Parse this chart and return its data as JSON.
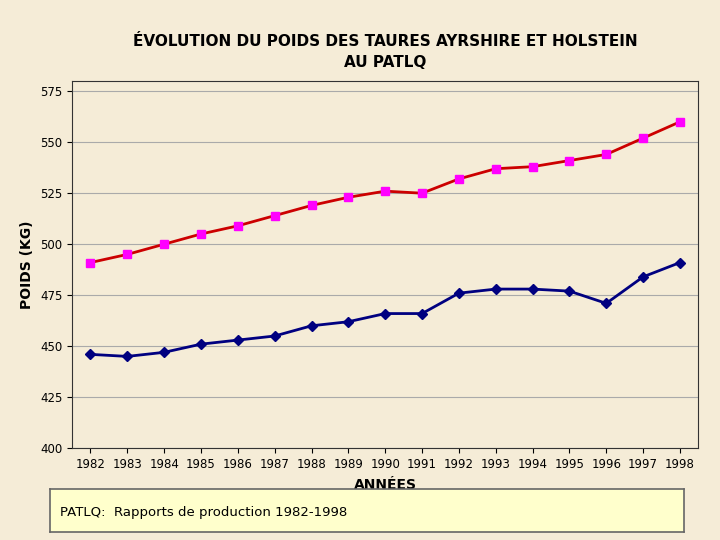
{
  "title": "ÉVOLUTION DU POIDS DES TAURES AYRSHIRE ET HOLSTEIN\nAU PATLQ",
  "xlabel": "ANNÉES",
  "ylabel": "POIDS (KG)",
  "years": [
    1982,
    1983,
    1984,
    1985,
    1986,
    1987,
    1988,
    1989,
    1990,
    1991,
    1992,
    1993,
    1994,
    1995,
    1996,
    1997,
    1998
  ],
  "ayrshire": [
    491,
    495,
    500,
    505,
    509,
    514,
    519,
    523,
    526,
    525,
    532,
    537,
    538,
    541,
    544,
    552,
    560
  ],
  "holstein": [
    446,
    445,
    447,
    451,
    453,
    455,
    460,
    462,
    466,
    466,
    476,
    478,
    478,
    477,
    471,
    484,
    491
  ],
  "ayrshire_line_color": "#cc0000",
  "ayrshire_marker_color": "#ff00ff",
  "holstein_color": "#000080",
  "ylim_min": 400,
  "ylim_max": 580,
  "yticks": [
    400,
    425,
    450,
    475,
    500,
    525,
    550,
    575
  ],
  "bg_color": "#f5ecd7",
  "plot_bg_color": "#f5ecd7",
  "grid_color": "#aaaaaa",
  "footer_text": "PATLQ:  Rapports de production 1982-1998",
  "footer_bg": "#ffffcc",
  "title_fontsize": 11,
  "axis_label_fontsize": 10,
  "tick_fontsize": 8.5,
  "footer_fontsize": 9.5
}
